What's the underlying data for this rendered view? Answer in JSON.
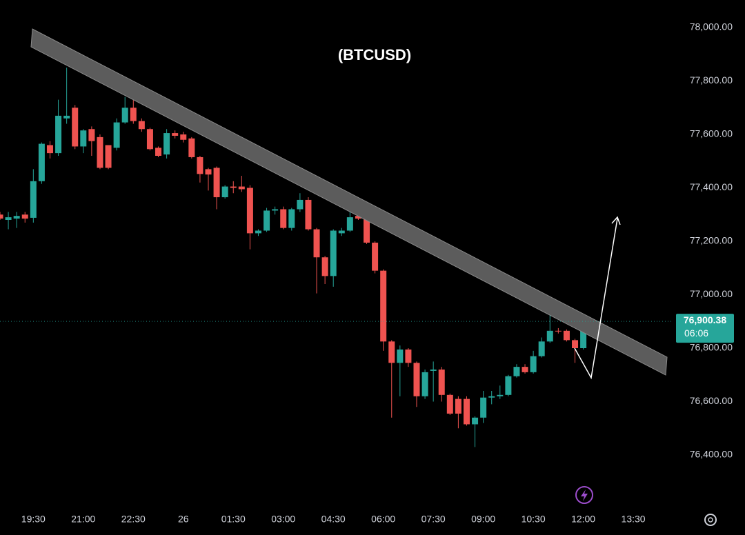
{
  "chart_data": {
    "type": "candlestick",
    "title": "(BTCUSD)",
    "categories": [
      null,
      null,
      null,
      null,
      "19:30",
      null,
      null,
      null,
      null,
      null,
      "21:00",
      null,
      null,
      null,
      null,
      null,
      "22:30",
      null,
      null,
      null,
      null,
      null,
      "26",
      null,
      null,
      null,
      null,
      null,
      "01:30",
      null,
      null,
      null,
      null,
      null,
      "03:00",
      null,
      null,
      null,
      null,
      null,
      "04:30",
      null,
      null,
      null,
      null,
      null,
      "06:00",
      null,
      null,
      null,
      null,
      null,
      "07:30",
      null,
      null,
      null,
      null,
      null,
      "09:00",
      null,
      null,
      null,
      null,
      null,
      "10:30",
      null,
      null,
      null,
      null,
      null,
      "12:00",
      null,
      null,
      null,
      null,
      null,
      "13:30",
      null,
      null,
      null
    ],
    "open": [
      77300,
      77280,
      77285,
      77300,
      77288,
      77425,
      77560,
      77530,
      77660,
      77700,
      77555,
      77620,
      77590,
      77560,
      77550,
      77645,
      77700,
      77650,
      77620,
      77550,
      77525,
      77605,
      77600,
      77585,
      77515,
      77470,
      77475,
      77365,
      77405,
      77405,
      77400,
      77230,
      77240,
      77315,
      77320,
      77250,
      77320,
      77355,
      77245,
      77140,
      77070,
      77230,
      77240,
      77295,
      77290,
      77195,
      77090,
      76825,
      76745,
      76795,
      76745,
      76620,
      76715,
      76720,
      76625,
      76610,
      76610,
      76515,
      76540,
      76615,
      76620,
      76625,
      76695,
      76730,
      76710,
      76770,
      76825,
      76865,
      76865,
      76830,
      76800,
      null,
      null,
      null,
      null,
      null,
      null,
      null,
      null,
      null
    ],
    "high": [
      77310,
      77310,
      77310,
      77310,
      77470,
      77570,
      77575,
      77730,
      77850,
      77710,
      77620,
      77630,
      77600,
      77560,
      77660,
      77740,
      77750,
      77660,
      77625,
      77555,
      77620,
      77615,
      77610,
      77590,
      77520,
      77475,
      77480,
      77410,
      77425,
      77445,
      77410,
      77245,
      77325,
      77330,
      77330,
      77325,
      77380,
      77365,
      77250,
      77145,
      77245,
      77250,
      77320,
      77310,
      77300,
      77200,
      77095,
      76830,
      76810,
      76800,
      76750,
      76720,
      76750,
      76730,
      76630,
      76620,
      76620,
      76545,
      76640,
      76640,
      76660,
      76700,
      76740,
      76740,
      76790,
      76840,
      76930,
      76875,
      76870,
      76835,
      76905,
      null,
      null,
      null,
      null,
      null,
      null,
      null,
      null,
      null
    ],
    "low": [
      77280,
      77245,
      77250,
      77270,
      77270,
      77415,
      77510,
      77520,
      77640,
      77545,
      77530,
      77520,
      77470,
      77470,
      77540,
      77640,
      77640,
      77610,
      77540,
      77515,
      77510,
      77585,
      77570,
      77510,
      77420,
      77390,
      77320,
      77360,
      77380,
      77385,
      77170,
      77220,
      77235,
      77300,
      77245,
      77240,
      77310,
      77240,
      77005,
      77040,
      77030,
      77220,
      77235,
      77280,
      77190,
      77080,
      76790,
      76540,
      76620,
      76730,
      76580,
      76610,
      76600,
      76600,
      76550,
      76500,
      76510,
      76430,
      76520,
      76590,
      76610,
      76620,
      76690,
      76705,
      76705,
      76765,
      76820,
      76855,
      76825,
      76745,
      76795,
      null,
      null,
      null,
      null,
      null,
      null,
      null,
      null,
      null
    ],
    "close": [
      77285,
      77290,
      77295,
      77285,
      77425,
      77565,
      77530,
      77670,
      77670,
      77555,
      77615,
      77575,
      77475,
      77475,
      77645,
      77700,
      77650,
      77620,
      77545,
      77520,
      77605,
      77595,
      77580,
      77515,
      77452,
      77450,
      77365,
      77405,
      77400,
      77395,
      77230,
      77240,
      77315,
      77320,
      77250,
      77320,
      77355,
      77245,
      77140,
      77070,
      77240,
      77240,
      77290,
      77285,
      77195,
      77090,
      76825,
      76745,
      76795,
      76745,
      76620,
      76710,
      76720,
      76625,
      76555,
      76555,
      76515,
      76540,
      76615,
      76620,
      76625,
      76695,
      76730,
      76710,
      76770,
      76825,
      76865,
      76863,
      76830,
      76800,
      76900.38,
      null,
      null,
      null,
      null,
      null,
      null,
      null,
      null,
      null
    ],
    "up_color": "#26a69a",
    "down_color": "#ef5350",
    "ylim": [
      76200,
      78100
    ],
    "yticks": [
      {
        "value": 76400,
        "label": "76,400.00"
      },
      {
        "value": 76600,
        "label": "76,600.00"
      },
      {
        "value": 76800,
        "label": "76,800.00"
      },
      {
        "value": 77000,
        "label": "77,000.00"
      },
      {
        "value": 77200,
        "label": "77,200.00"
      },
      {
        "value": 77400,
        "label": "77,400.00"
      },
      {
        "value": 77600,
        "label": "77,600.00"
      },
      {
        "value": 77800,
        "label": "77,800.00"
      },
      {
        "value": 78000,
        "label": "78,000.00"
      }
    ],
    "last_price": {
      "value": 76900.38,
      "label": "76,900.38"
    },
    "countdown": "06:06",
    "grid": false
  }
}
